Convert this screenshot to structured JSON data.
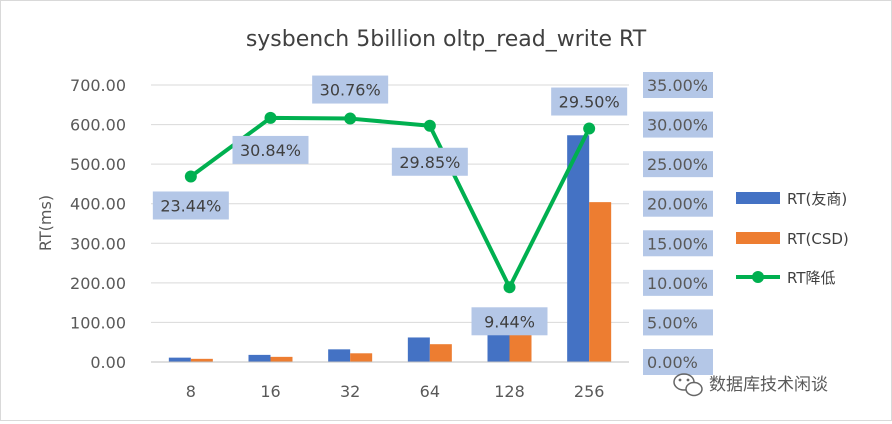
{
  "chart_data": {
    "type": "bar",
    "title": "sysbench 5billion oltp_read_write RT",
    "xlabel": "",
    "ylabel": "RT(ms)",
    "categories": [
      "8",
      "16",
      "32",
      "64",
      "128",
      "256"
    ],
    "ylim": [
      0,
      700
    ],
    "y_ticks": [
      "0.00",
      "100.00",
      "200.00",
      "300.00",
      "400.00",
      "500.00",
      "600.00",
      "700.00"
    ],
    "y2lim": [
      0,
      35
    ],
    "y2_ticks": [
      "0.00%",
      "5.00%",
      "10.00%",
      "15.00%",
      "20.00%",
      "25.00%",
      "30.00%",
      "35.00%"
    ],
    "series": [
      {
        "name": "RT(友商)",
        "kind": "bar",
        "axis": "left",
        "color": "#4472c4",
        "values": [
          11,
          18,
          32,
          62,
          80,
          573
        ]
      },
      {
        "name": "RT(CSD)",
        "kind": "bar",
        "axis": "left",
        "color": "#ed7d31",
        "values": [
          8,
          13,
          22,
          45,
          72,
          404
        ]
      },
      {
        "name": "RT降低",
        "kind": "line",
        "axis": "right",
        "color": "#00b050",
        "values": [
          23.44,
          30.84,
          30.76,
          29.85,
          9.44,
          29.5
        ],
        "labels": [
          "23.44%",
          "30.84%",
          "30.76%",
          "29.85%",
          "9.44%",
          "29.50%"
        ]
      }
    ],
    "grid": true,
    "legend_position": "right"
  },
  "watermark": {
    "text": "数据库技术闲谈",
    "icon": "wechat-icon"
  }
}
